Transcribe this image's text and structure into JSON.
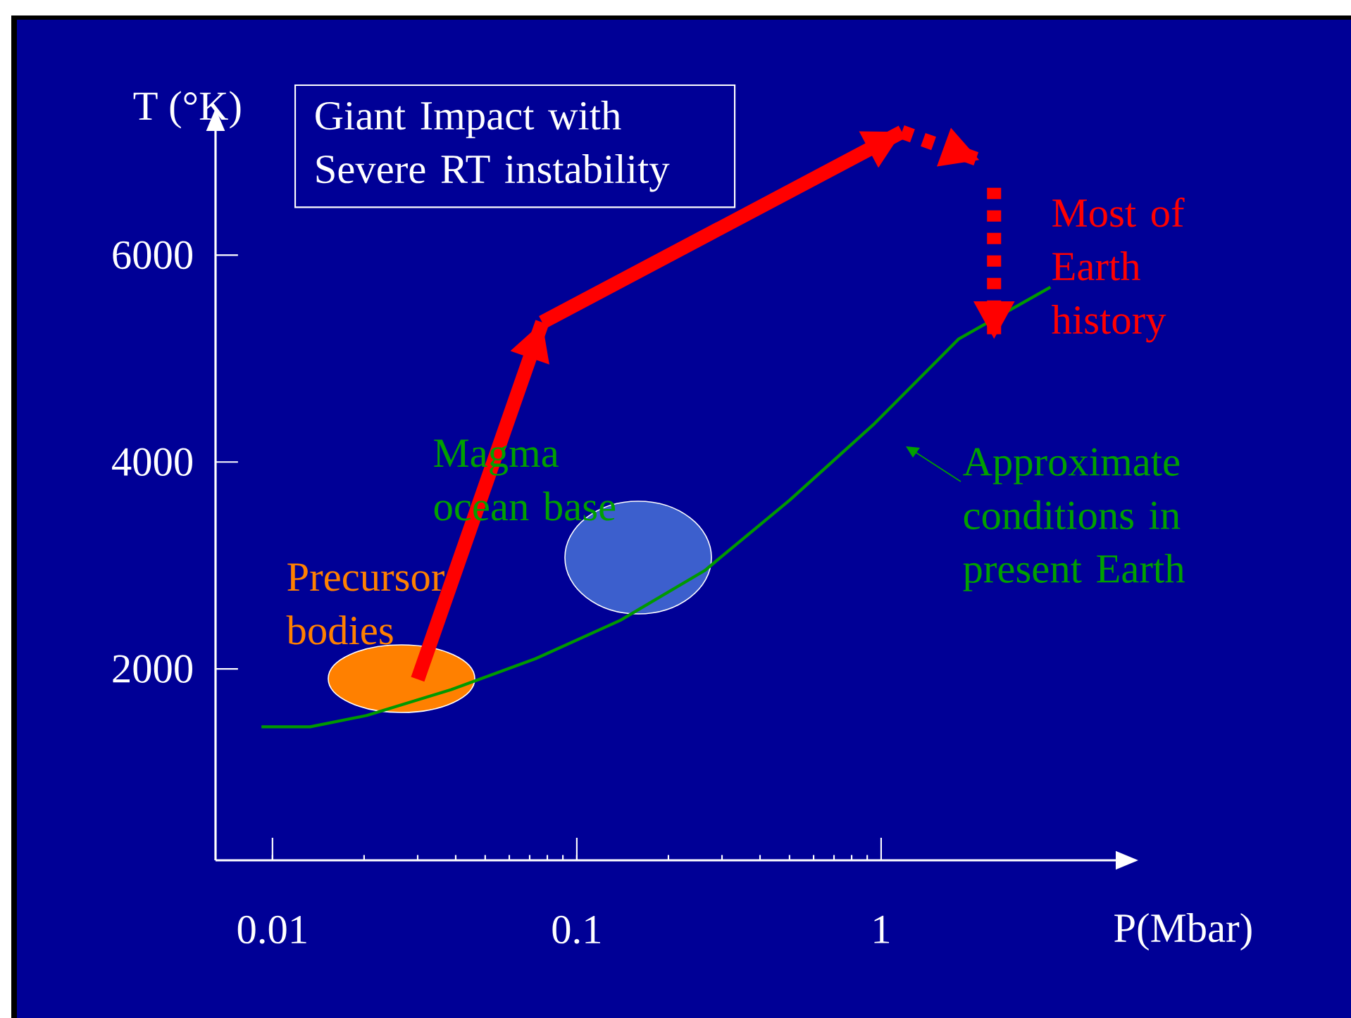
{
  "chart_data": {
    "type": "line",
    "xlabel": "P(Mbar)",
    "ylabel": "T (°K)",
    "log": "x",
    "xlim": [
      0.0065,
      5.9
    ],
    "ylim": [
      150,
      7200
    ],
    "xticks": [
      0.01,
      0.1,
      1
    ],
    "yticks": [
      2000,
      4000,
      6000
    ],
    "series": [
      {
        "color": "#009900",
        "line_style": "solid",
        "x": [
          0.0092,
          0.0133,
          0.0204,
          0.0387,
          0.0733,
          0.139,
          0.263,
          0.5,
          0.95,
          1.8,
          3.6
        ],
        "values": [
          1440,
          1440,
          1550,
          1800,
          2100,
          2470,
          2950,
          3630,
          4370,
          5190,
          5690
        ]
      },
      {
        "color": "#ff0000",
        "line_style": "solid",
        "x": [
          0.03,
          0.077
        ],
        "values": [
          1900,
          5350
        ]
      },
      {
        "color": "#ff0000",
        "line_style": "solid",
        "x": [
          0.077,
          1.17
        ],
        "values": [
          5350,
          7190
        ]
      },
      {
        "color": "#ff0000",
        "line_style": "dotted",
        "x": [
          1.17,
          2.1
        ],
        "values": [
          7190,
          6920
        ]
      },
      {
        "color": "#ff0000",
        "line_style": "dotted",
        "x": [
          2.35,
          2.35
        ],
        "values": [
          6650,
          5190
        ]
      }
    ],
    "annotations": [
      "Giant Impact with Severe RT instability",
      "Magma ocean base",
      "Precursor bodies",
      "Approximate conditions in present Earth",
      "Most of Earth history"
    ]
  }
}
